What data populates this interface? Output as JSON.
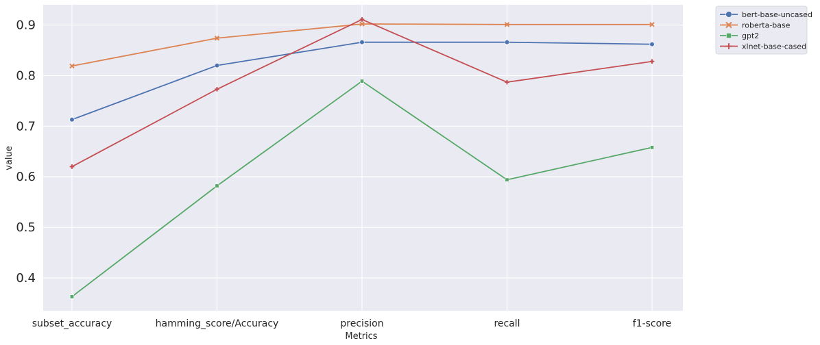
{
  "chart_data": {
    "type": "line",
    "categories": [
      "subset_accuracy",
      "hamming_score/Accuracy",
      "precision",
      "recall",
      "f1-score"
    ],
    "series": [
      {
        "name": "bert-base-uncased",
        "values": [
          0.713,
          0.82,
          0.866,
          0.866,
          0.862
        ],
        "color": "#4c72b0",
        "marker": "circle"
      },
      {
        "name": "roberta-base",
        "values": [
          0.819,
          0.874,
          0.902,
          0.901,
          0.901
        ],
        "color": "#dd8452",
        "marker": "x"
      },
      {
        "name": "gpt2",
        "values": [
          0.363,
          0.582,
          0.789,
          0.594,
          0.658
        ],
        "color": "#55a868",
        "marker": "square"
      },
      {
        "name": "xlnet-base-cased",
        "values": [
          0.62,
          0.773,
          0.911,
          0.787,
          0.828
        ],
        "color": "#c44e52",
        "marker": "plus"
      }
    ],
    "xlabel": "Metrics",
    "ylabel": "value",
    "ylim": [
      0.335,
      0.94
    ],
    "yticks": [
      0.4,
      0.5,
      0.6,
      0.7,
      0.8,
      0.9
    ],
    "grid": true,
    "background_color": "#eaeaf2",
    "legend_position": "outside-top-right"
  }
}
